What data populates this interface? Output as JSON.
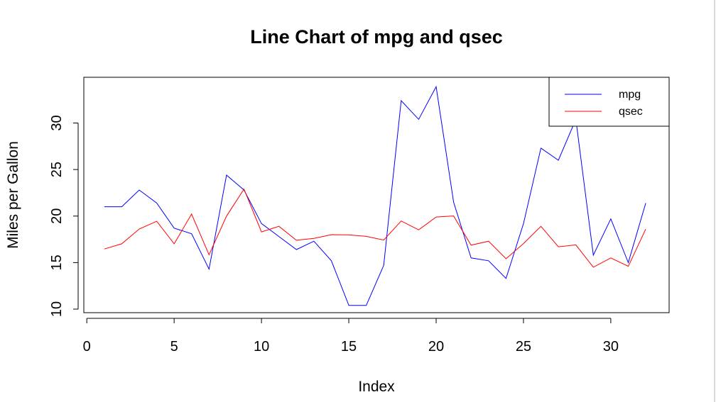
{
  "chart_data": {
    "type": "line",
    "title": "Line Chart of mpg and qsec",
    "xlabel": "Index",
    "ylabel": "Miles per Gallon",
    "xlim": [
      0,
      33
    ],
    "ylim": [
      10,
      34
    ],
    "xticks": [
      0,
      5,
      10,
      15,
      20,
      25,
      30
    ],
    "yticks": [
      10,
      15,
      20,
      25,
      30
    ],
    "grid": false,
    "legend_position": "top-right",
    "x": [
      1,
      2,
      3,
      4,
      5,
      6,
      7,
      8,
      9,
      10,
      11,
      12,
      13,
      14,
      15,
      16,
      17,
      18,
      19,
      20,
      21,
      22,
      23,
      24,
      25,
      26,
      27,
      28,
      29,
      30,
      31,
      32
    ],
    "series": [
      {
        "name": "mpg",
        "color": "#0000ff",
        "values": [
          21.0,
          21.0,
          22.8,
          21.4,
          18.7,
          18.1,
          14.3,
          24.4,
          22.8,
          19.2,
          17.8,
          16.4,
          17.3,
          15.2,
          10.4,
          10.4,
          14.7,
          32.4,
          30.4,
          33.9,
          21.5,
          15.5,
          15.2,
          13.3,
          19.2,
          27.3,
          26.0,
          30.4,
          15.8,
          19.7,
          15.0,
          21.4
        ]
      },
      {
        "name": "qsec",
        "color": "#ff0000",
        "values": [
          16.46,
          17.02,
          18.61,
          19.44,
          17.02,
          20.22,
          15.84,
          20.0,
          22.9,
          18.3,
          18.9,
          17.4,
          17.6,
          18.0,
          17.98,
          17.82,
          17.42,
          19.47,
          18.52,
          19.9,
          20.01,
          16.87,
          17.3,
          15.41,
          17.05,
          18.9,
          16.7,
          16.9,
          14.5,
          15.5,
          14.6,
          18.6
        ]
      }
    ]
  }
}
